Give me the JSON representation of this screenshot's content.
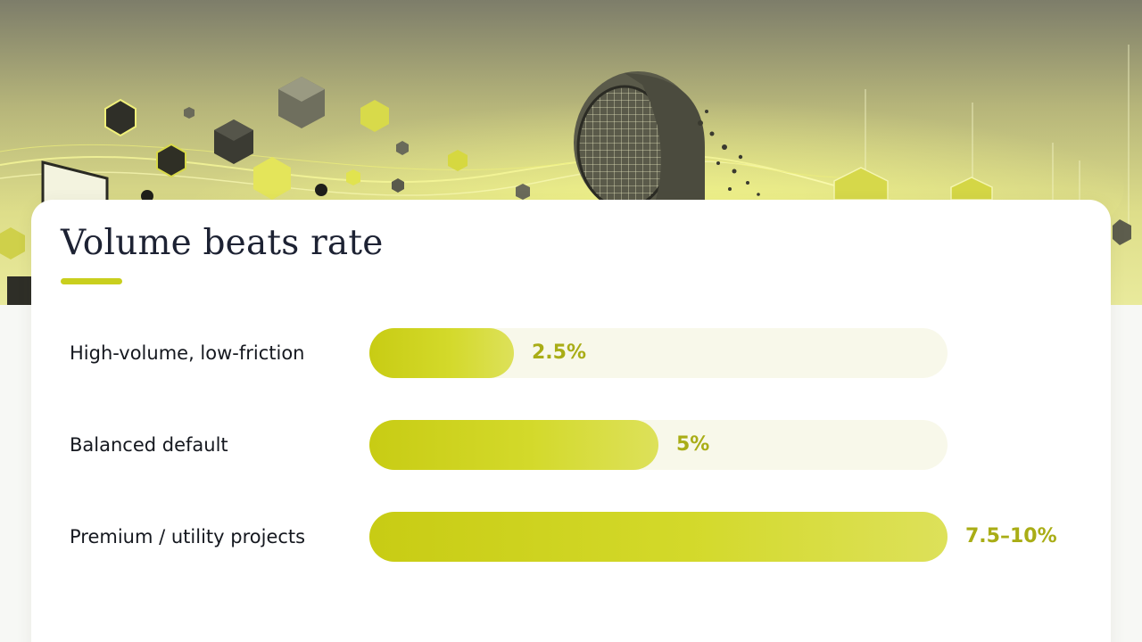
{
  "slide": {
    "title": "Volume beats rate"
  },
  "colors": {
    "accent": "#c9cf1e",
    "bar_fill": "#d3d92a",
    "track": "#f8f8ea",
    "value_text": "#a9ad16",
    "title_text": "#1d2233"
  },
  "chart_data": {
    "type": "bar",
    "orientation": "horizontal",
    "title": "Volume beats rate",
    "categories": [
      "High-volume, low-friction",
      "Balanced default",
      "Premium / utility projects"
    ],
    "values": [
      2.5,
      5,
      10
    ],
    "value_labels": [
      "2.5%",
      "5%",
      "7.5–10%"
    ],
    "unit": "%",
    "xlim": [
      0,
      10
    ],
    "grid": false,
    "legend": "none"
  }
}
